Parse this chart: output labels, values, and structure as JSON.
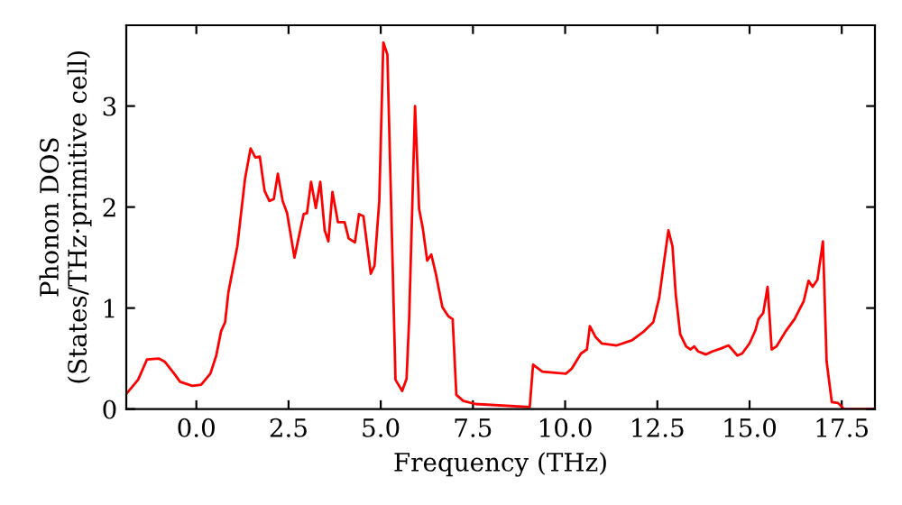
{
  "chart_data": {
    "type": "line",
    "xlabel": "Frequency (THz)",
    "ylabel": "Phonon DOS\n(States/THz·primitive cell)",
    "x": [
      -1.9,
      -1.58,
      -1.34,
      -1.02,
      -0.86,
      -0.6,
      -0.44,
      -0.11,
      0.13,
      0.38,
      0.54,
      0.67,
      0.78,
      0.87,
      1.11,
      1.32,
      1.47,
      1.6,
      1.72,
      1.85,
      1.98,
      2.1,
      2.21,
      2.34,
      2.46,
      2.66,
      2.91,
      3.0,
      3.11,
      3.24,
      3.36,
      3.48,
      3.58,
      3.69,
      3.84,
      4.02,
      4.13,
      4.3,
      4.41,
      4.53,
      4.73,
      4.83,
      4.96,
      5.07,
      5.18,
      5.4,
      5.58,
      5.7,
      5.77,
      5.93,
      6.04,
      6.14,
      6.26,
      6.37,
      6.5,
      6.67,
      6.83,
      6.95,
      7.05,
      7.24,
      7.57,
      9.04,
      9.13,
      9.38,
      10.02,
      10.18,
      10.43,
      10.59,
      10.67,
      10.83,
      10.99,
      11.4,
      11.81,
      12.14,
      12.39,
      12.55,
      12.66,
      12.8,
      12.91,
      13.0,
      13.12,
      13.28,
      13.4,
      13.5,
      13.61,
      13.82,
      13.99,
      14.23,
      14.43,
      14.67,
      14.8,
      15.0,
      15.16,
      15.24,
      15.37,
      15.49,
      15.6,
      15.73,
      15.98,
      16.22,
      16.47,
      16.6,
      16.71,
      16.84,
      16.99,
      17.09,
      17.23,
      17.4,
      17.56,
      18.4
    ],
    "series": [
      {
        "color": "#ff0000",
        "values": [
          0.15,
          0.29,
          0.49,
          0.5,
          0.47,
          0.35,
          0.27,
          0.23,
          0.24,
          0.35,
          0.53,
          0.77,
          0.86,
          1.16,
          1.61,
          2.28,
          2.58,
          2.49,
          2.5,
          2.16,
          2.06,
          2.08,
          2.33,
          2.06,
          1.94,
          1.5,
          1.93,
          1.94,
          2.25,
          1.99,
          2.25,
          1.77,
          1.66,
          2.15,
          1.85,
          1.85,
          1.69,
          1.65,
          1.93,
          1.91,
          1.34,
          1.42,
          2.06,
          3.63,
          3.51,
          0.29,
          0.18,
          0.3,
          0.89,
          3.0,
          1.98,
          1.79,
          1.47,
          1.53,
          1.33,
          1.01,
          0.92,
          0.89,
          0.14,
          0.08,
          0.05,
          0.02,
          0.44,
          0.37,
          0.35,
          0.4,
          0.55,
          0.59,
          0.82,
          0.71,
          0.65,
          0.63,
          0.68,
          0.77,
          0.86,
          1.1,
          1.4,
          1.77,
          1.61,
          1.13,
          0.74,
          0.62,
          0.59,
          0.62,
          0.57,
          0.54,
          0.57,
          0.6,
          0.63,
          0.53,
          0.55,
          0.65,
          0.78,
          0.89,
          0.95,
          1.21,
          0.59,
          0.62,
          0.77,
          0.89,
          1.07,
          1.27,
          1.21,
          1.28,
          1.66,
          0.47,
          0.07,
          0.06,
          0.0,
          0.0
        ]
      }
    ],
    "xlim": [
      -1.9,
      18.4
    ],
    "ylim": [
      0,
      3.8
    ],
    "xticks": [
      {
        "value": 0,
        "label": "0.0"
      },
      {
        "value": 2.5,
        "label": "2.5"
      },
      {
        "value": 5,
        "label": "5.0"
      },
      {
        "value": 7.5,
        "label": "7.5"
      },
      {
        "value": 10,
        "label": "10.0"
      },
      {
        "value": 12.5,
        "label": "12.5"
      },
      {
        "value": 15,
        "label": "15.0"
      },
      {
        "value": 17.5,
        "label": "17.5"
      }
    ],
    "yticks": [
      0,
      1,
      2,
      3
    ],
    "grid": false,
    "marker": "none",
    "line_style": "solid"
  }
}
